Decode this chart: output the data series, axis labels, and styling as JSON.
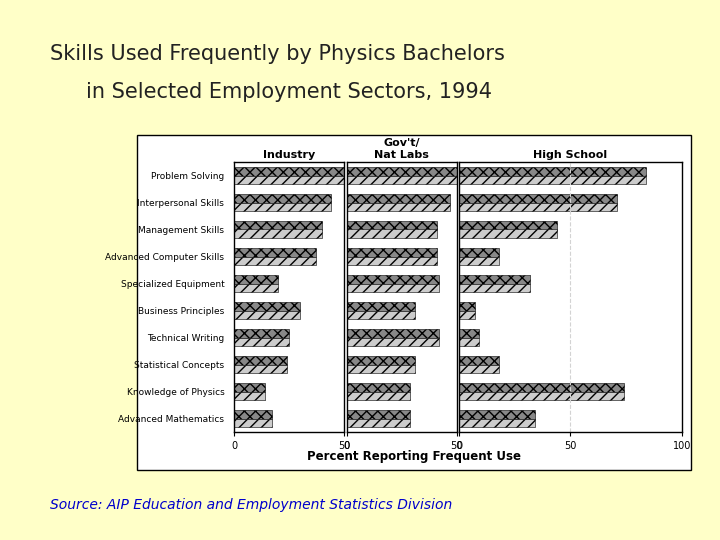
{
  "title_line1": "Skills Used Frequently by Physics Bachelors",
  "title_line2": "in Selected Employment Sectors, 1994",
  "source": "Source: AIP Education and Employment Statistics Division",
  "background_color": "#FFFFC8",
  "chart_bg": "#FFFFFF",
  "skills": [
    "Problem Solving",
    "Interpersonal Skills",
    "Management Skills",
    "Advanced Computer Skills",
    "Specialized Equipment",
    "Business Principles",
    "Technical Writing",
    "Statistical Concepts",
    "Knowledge of Physics",
    "Advanced Mathematics"
  ],
  "industry_vals": [
    50,
    44,
    40,
    37,
    20,
    30,
    25,
    24,
    14,
    17
  ],
  "govlabs_vals": [
    50,
    47,
    41,
    41,
    42,
    31,
    42,
    31,
    29,
    29
  ],
  "highschool_vals": [
    84,
    71,
    44,
    18,
    32,
    7,
    9,
    18,
    74,
    34
  ],
  "title_fontsize": 15,
  "title_color": "#222222",
  "source_color": "#0000CC",
  "source_fontsize": 10
}
